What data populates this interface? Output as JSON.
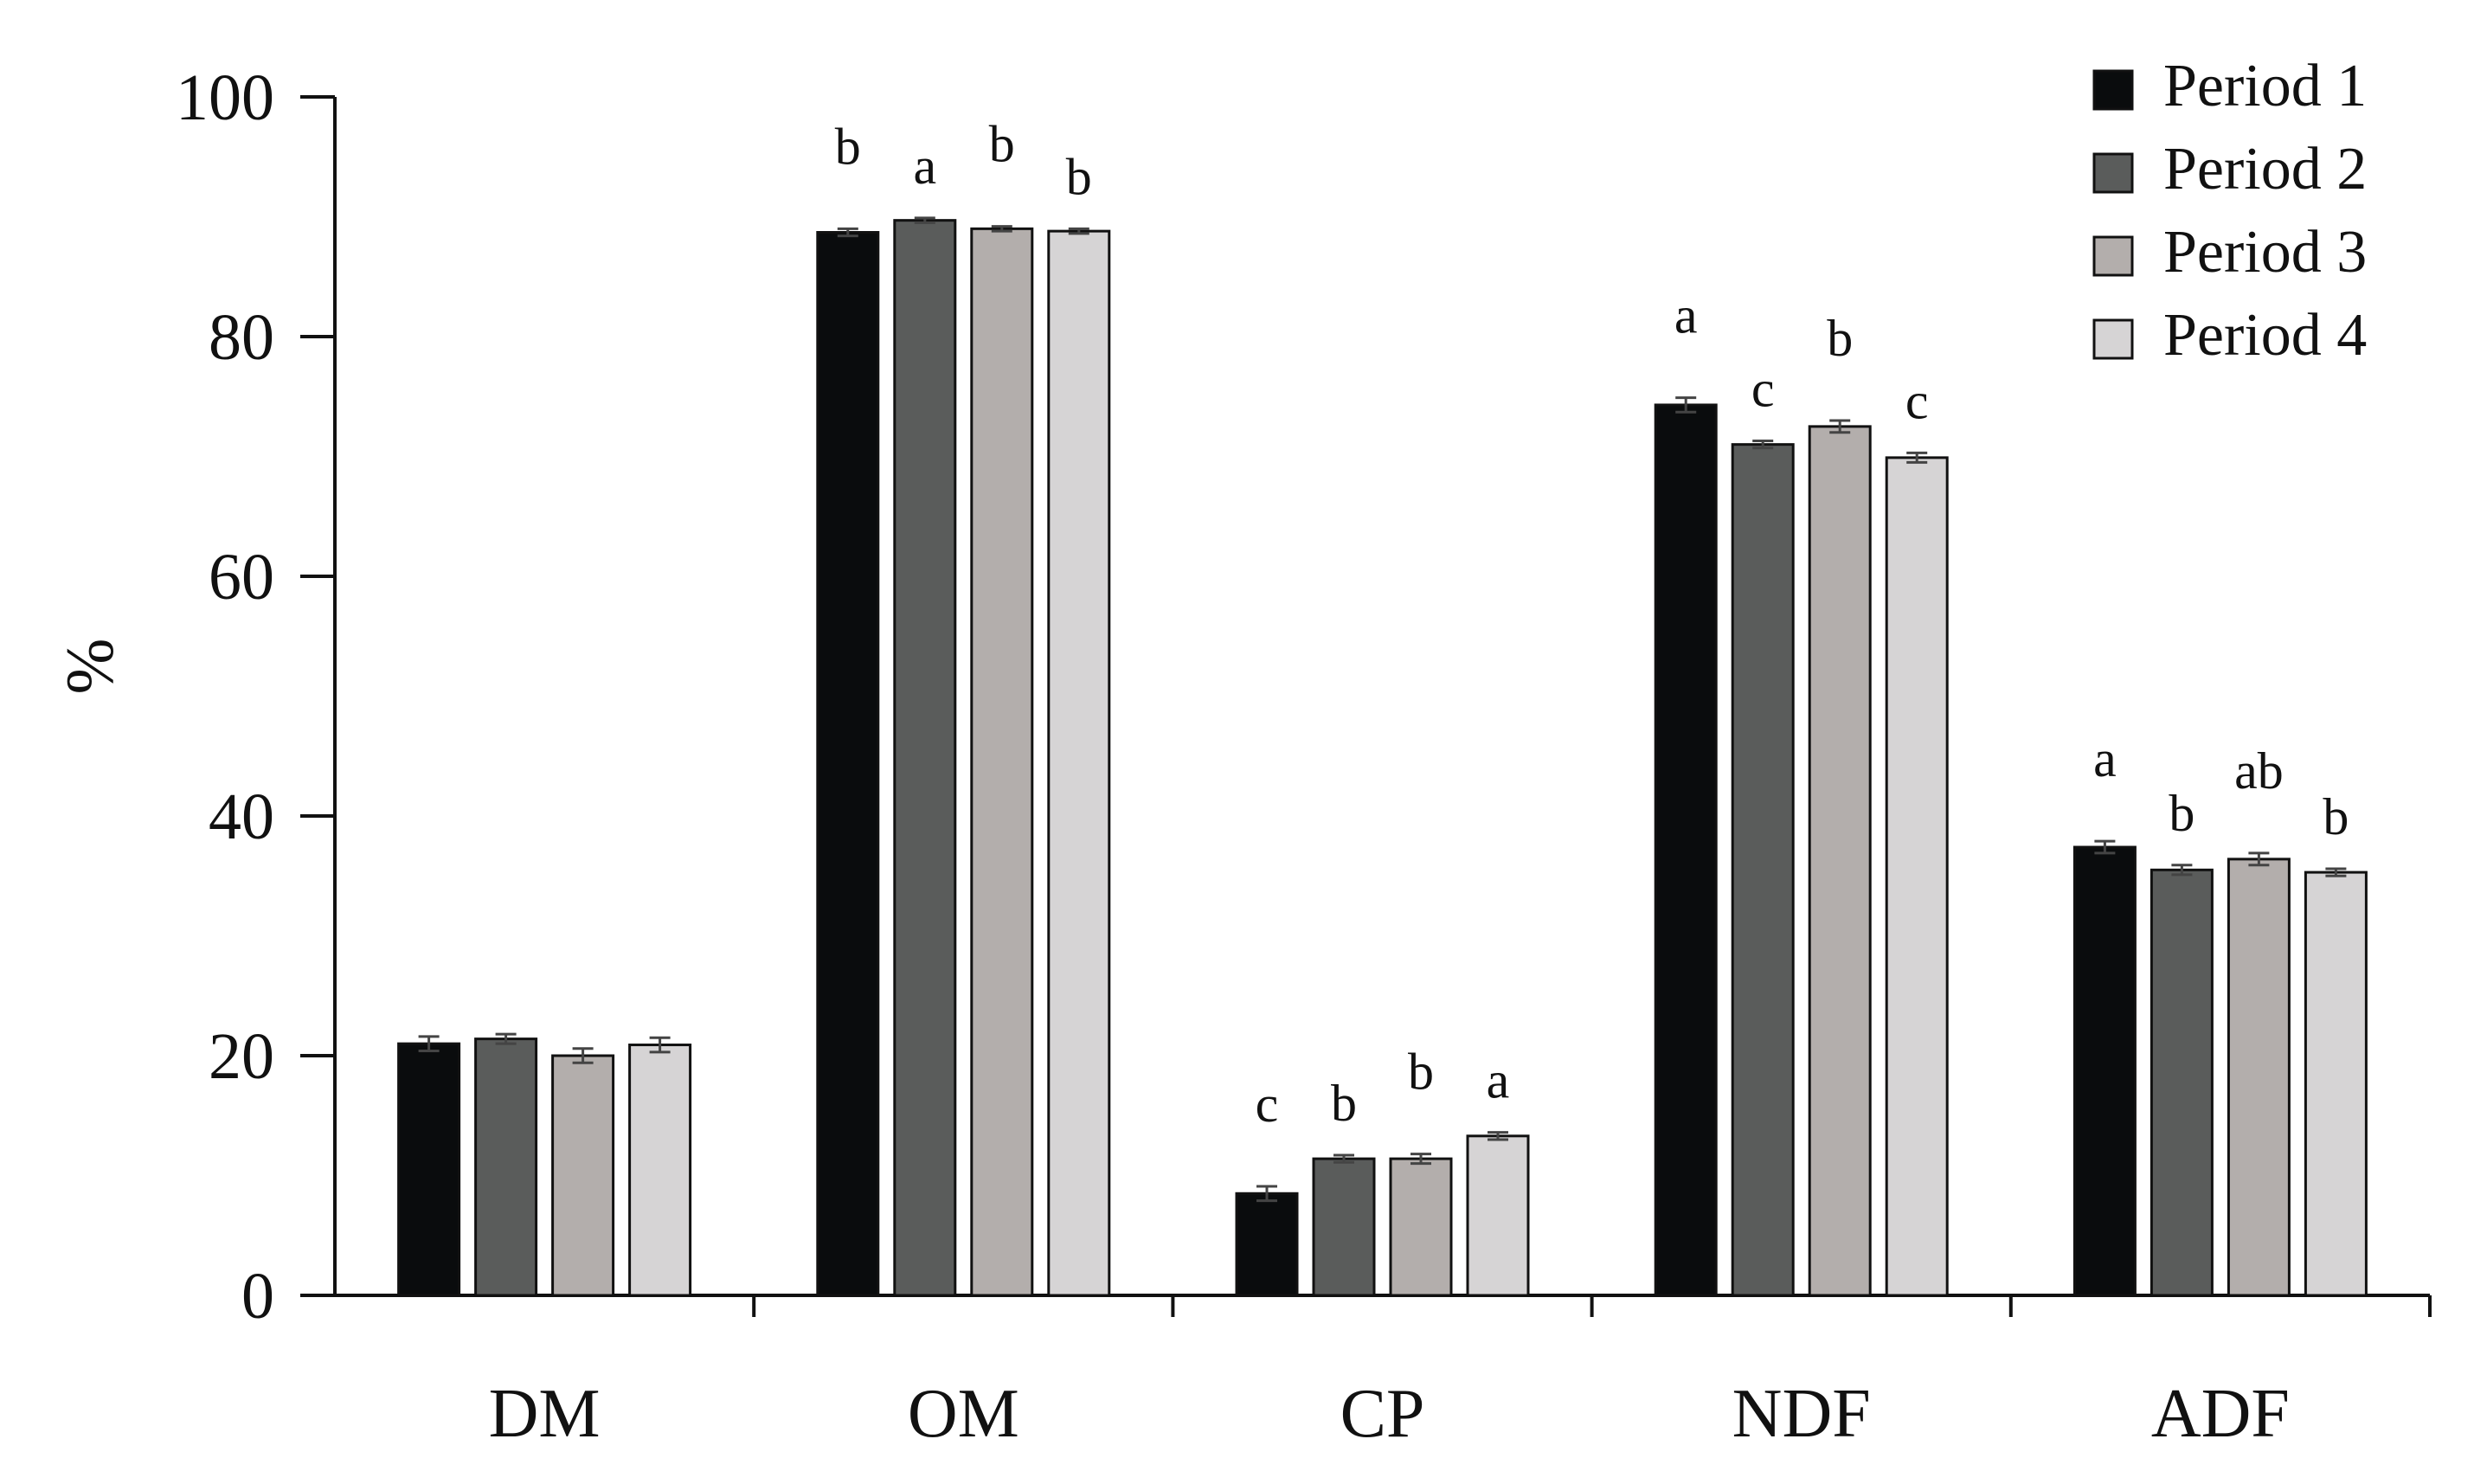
{
  "chart_data": {
    "type": "bar",
    "ylabel": "%",
    "xlabel": "",
    "ylim": [
      0,
      100
    ],
    "yticks": [
      0,
      20,
      40,
      60,
      80,
      100
    ],
    "categories": [
      "DM",
      "OM",
      "CP",
      "NDF",
      "ADF"
    ],
    "legend_position": "top-right",
    "grid": false,
    "series": [
      {
        "name": "Period 1",
        "color": "#0a0c0d",
        "values": [
          21.0,
          88.7,
          8.5,
          74.3,
          37.4
        ],
        "errors": [
          0.6,
          0.3,
          0.6,
          0.6,
          0.5
        ],
        "sig": [
          "",
          "b",
          "c",
          "a",
          "a"
        ]
      },
      {
        "name": "Period 2",
        "color": "#5a5c5b",
        "values": [
          21.4,
          89.7,
          11.4,
          71.0,
          35.5
        ],
        "errors": [
          0.4,
          0.2,
          0.3,
          0.3,
          0.4
        ],
        "sig": [
          "",
          "a",
          "b",
          "c",
          "b"
        ]
      },
      {
        "name": "Period 3",
        "color": "#b3aeac",
        "values": [
          20.0,
          89.0,
          11.4,
          72.5,
          36.4
        ],
        "errors": [
          0.6,
          0.2,
          0.4,
          0.5,
          0.5
        ],
        "sig": [
          "",
          "b",
          "b",
          "b",
          "ab"
        ]
      },
      {
        "name": "Period 4",
        "color": "#d6d4d5",
        "values": [
          20.9,
          88.8,
          13.3,
          69.9,
          35.3
        ],
        "errors": [
          0.6,
          0.2,
          0.3,
          0.4,
          0.3
        ],
        "sig": [
          "",
          "b",
          "a",
          "c",
          "b"
        ]
      }
    ]
  }
}
